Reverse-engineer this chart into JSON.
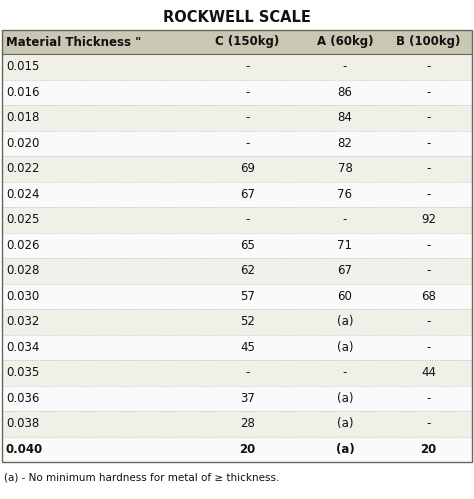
{
  "title": "ROCKWELL SCALE",
  "header": [
    "Material Thickness \"",
    "C (150kg)",
    "A (60kg)",
    "B (100kg)"
  ],
  "rows": [
    [
      "0.015",
      "-",
      "-",
      "-"
    ],
    [
      "0.016",
      "-",
      "86",
      "-"
    ],
    [
      "0.018",
      "-",
      "84",
      "-"
    ],
    [
      "0.020",
      "-",
      "82",
      "-"
    ],
    [
      "0.022",
      "69",
      "78",
      "-"
    ],
    [
      "0.024",
      "67",
      "76",
      "-"
    ],
    [
      "0.025",
      "-",
      "-",
      "92"
    ],
    [
      "0.026",
      "65",
      "71",
      "-"
    ],
    [
      "0.028",
      "62",
      "67",
      "-"
    ],
    [
      "0.030",
      "57",
      "60",
      "68"
    ],
    [
      "0.032",
      "52",
      "(a)",
      "-"
    ],
    [
      "0.034",
      "45",
      "(a)",
      "-"
    ],
    [
      "0.035",
      "-",
      "-",
      "44"
    ],
    [
      "0.036",
      "37",
      "(a)",
      "-"
    ],
    [
      "0.038",
      "28",
      "(a)",
      "-"
    ],
    [
      "0.040",
      "20",
      "(a)",
      "20"
    ]
  ],
  "footnote": "(a) - No minimum hardness for metal of ≥ thickness.",
  "header_bg": "#c8c8b4",
  "row_bg_odd": "#f0f0e8",
  "row_bg_even": "#fafafa",
  "header_text_color": "#111111",
  "row_text_color": "#111111",
  "title_color": "#111111",
  "bg_color": "#ffffff",
  "border_color": "#666655",
  "dot_line_color": "#aaaaaa",
  "title_fontsize": 10.5,
  "header_fontsize": 8.5,
  "row_fontsize": 8.5,
  "footnote_fontsize": 7.5
}
